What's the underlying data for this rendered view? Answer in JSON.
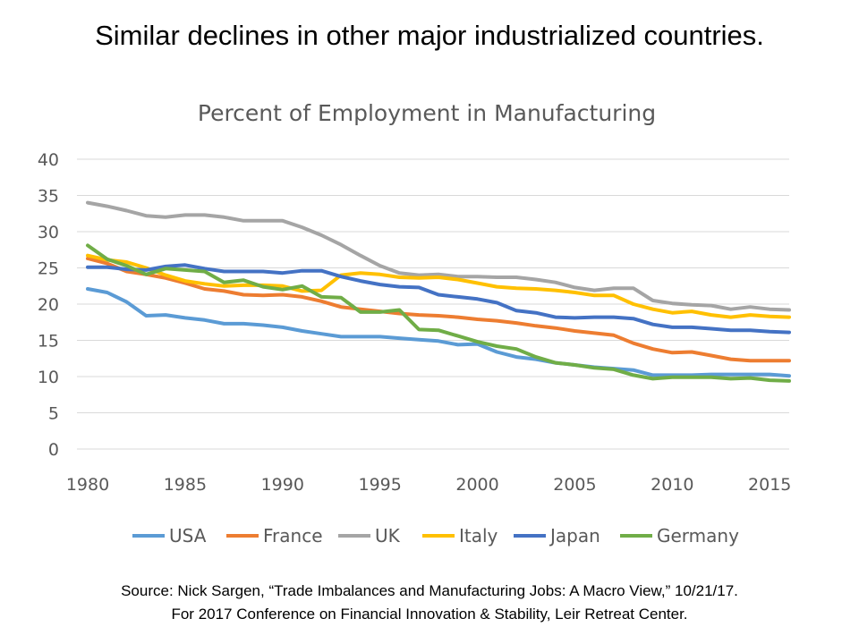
{
  "slide": {
    "title": "Similar declines in other major industrialized  countries.",
    "source_line1": "Source:  Nick Sargen, “Trade Imbalances and Manufacturing Jobs: A Macro View,” 10/21/17.",
    "source_line2": "For 2017 Conference  on Financial Innovation & Stability, Leir Retreat Center."
  },
  "chart_data": {
    "type": "line",
    "title": "Percent of Employment in Manufacturing",
    "xlabel": "",
    "ylabel": "",
    "xlim": [
      1980,
      2016
    ],
    "ylim": [
      0,
      40
    ],
    "x_ticks": [
      1980,
      1985,
      1990,
      1995,
      2000,
      2005,
      2010,
      2015
    ],
    "y_ticks": [
      0,
      5,
      10,
      15,
      20,
      25,
      30,
      35,
      40
    ],
    "grid": true,
    "legend_position": "bottom",
    "x": [
      1980,
      1981,
      1982,
      1983,
      1984,
      1985,
      1986,
      1987,
      1988,
      1989,
      1990,
      1991,
      1992,
      1993,
      1994,
      1995,
      1996,
      1997,
      1998,
      1999,
      2000,
      2001,
      2002,
      2003,
      2004,
      2005,
      2006,
      2007,
      2008,
      2009,
      2010,
      2011,
      2012,
      2013,
      2014,
      2015,
      2016
    ],
    "series": [
      {
        "name": "USA",
        "color": "#5b9bd5",
        "values": [
          22.1,
          21.6,
          20.3,
          18.4,
          18.5,
          18.1,
          17.8,
          17.3,
          17.3,
          17.1,
          16.8,
          16.3,
          15.9,
          15.5,
          15.5,
          15.5,
          15.3,
          15.1,
          14.9,
          14.4,
          14.5,
          13.4,
          12.7,
          12.4,
          11.9,
          11.6,
          11.3,
          11.1,
          10.9,
          10.2,
          10.2,
          10.2,
          10.3,
          10.3,
          10.3,
          10.3,
          10.1
        ]
      },
      {
        "name": "France",
        "color": "#ed7d31",
        "values": [
          26.3,
          25.6,
          24.5,
          24.1,
          23.6,
          22.9,
          22.1,
          21.8,
          21.3,
          21.2,
          21.3,
          21.0,
          20.4,
          19.6,
          19.3,
          19.0,
          18.7,
          18.5,
          18.4,
          18.2,
          17.9,
          17.7,
          17.4,
          17.0,
          16.7,
          16.3,
          16.0,
          15.7,
          14.6,
          13.8,
          13.3,
          13.4,
          12.9,
          12.4,
          12.2,
          12.2,
          12.2
        ]
      },
      {
        "name": "UK",
        "color": "#a5a5a5",
        "values": [
          34.0,
          33.5,
          32.9,
          32.2,
          32.0,
          32.3,
          32.3,
          32.0,
          31.5,
          31.5,
          31.5,
          30.6,
          29.5,
          28.2,
          26.7,
          25.3,
          24.3,
          24.0,
          24.1,
          23.8,
          23.8,
          23.7,
          23.7,
          23.4,
          23.0,
          22.3,
          21.9,
          22.2,
          22.2,
          20.5,
          20.1,
          19.9,
          19.8,
          19.3,
          19.6,
          19.3,
          19.2
        ]
      },
      {
        "name": "Italy",
        "color": "#ffc000",
        "values": [
          26.7,
          26.1,
          25.8,
          25.0,
          24.0,
          23.2,
          22.8,
          22.5,
          22.6,
          22.6,
          22.5,
          21.8,
          21.9,
          24.0,
          24.3,
          24.1,
          23.7,
          23.6,
          23.7,
          23.4,
          22.9,
          22.4,
          22.2,
          22.1,
          21.9,
          21.6,
          21.2,
          21.2,
          20.0,
          19.3,
          18.8,
          19.0,
          18.5,
          18.2,
          18.5,
          18.3,
          18.2
        ]
      },
      {
        "name": "Japan",
        "color": "#4472c4",
        "values": [
          25.1,
          25.1,
          24.8,
          24.7,
          25.2,
          25.4,
          24.9,
          24.5,
          24.5,
          24.5,
          24.3,
          24.6,
          24.6,
          23.8,
          23.2,
          22.7,
          22.4,
          22.3,
          21.3,
          21.0,
          20.7,
          20.2,
          19.1,
          18.8,
          18.2,
          18.1,
          18.2,
          18.2,
          18.0,
          17.2,
          16.8,
          16.8,
          16.6,
          16.4,
          16.4,
          16.2,
          16.1
        ]
      },
      {
        "name": "Germany",
        "color": "#70ad47",
        "values": [
          28.1,
          26.2,
          25.3,
          24.1,
          24.9,
          24.7,
          24.5,
          23.0,
          23.3,
          22.4,
          22.0,
          22.5,
          21.0,
          20.9,
          18.9,
          18.9,
          19.2,
          16.5,
          16.4,
          15.6,
          14.8,
          14.2,
          13.8,
          12.7,
          11.9,
          11.6,
          11.2,
          11.0,
          10.2,
          9.7,
          9.9,
          9.9,
          9.9,
          9.7,
          9.8,
          9.5,
          9.4
        ]
      }
    ]
  }
}
